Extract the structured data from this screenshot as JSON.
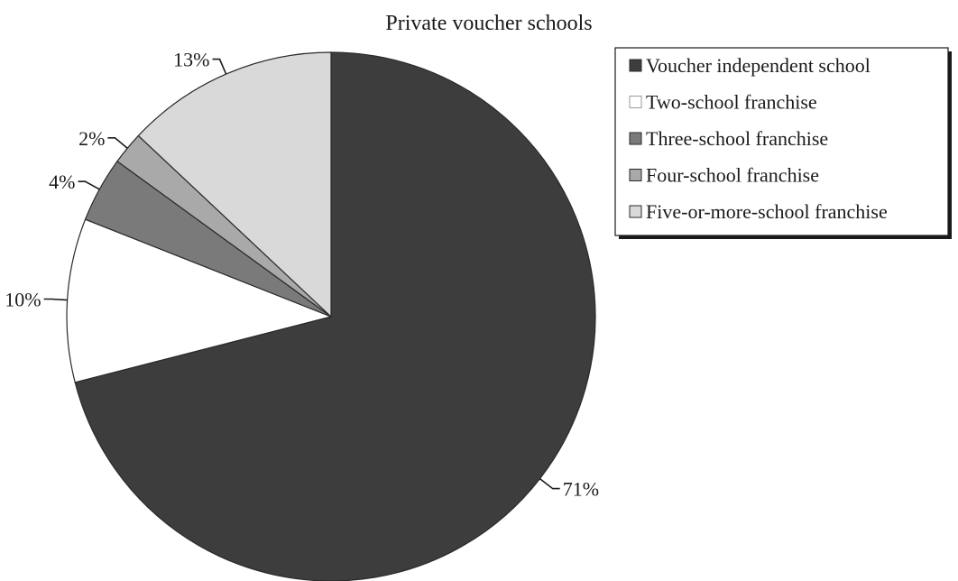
{
  "chart_data": {
    "type": "pie",
    "title": "Private voucher schools",
    "slices": [
      {
        "label": "Voucher independent school",
        "value": 71,
        "value_label": "71%",
        "color": "#3d3d3d"
      },
      {
        "label": "Two-school franchise",
        "value": 10,
        "value_label": "10%",
        "color": "#ffffff"
      },
      {
        "label": "Three-school franchise",
        "value": 4,
        "value_label": "4%",
        "color": "#7a7a7a"
      },
      {
        "label": "Four-school franchise",
        "value": 2,
        "value_label": "2%",
        "color": "#a9a9a9"
      },
      {
        "label": "Five-or-more-school franchise",
        "value": 13,
        "value_label": "13%",
        "color": "#d9d9d9"
      }
    ],
    "start": "12 o'clock",
    "direction": "clockwise",
    "legend_position": "top-right"
  }
}
